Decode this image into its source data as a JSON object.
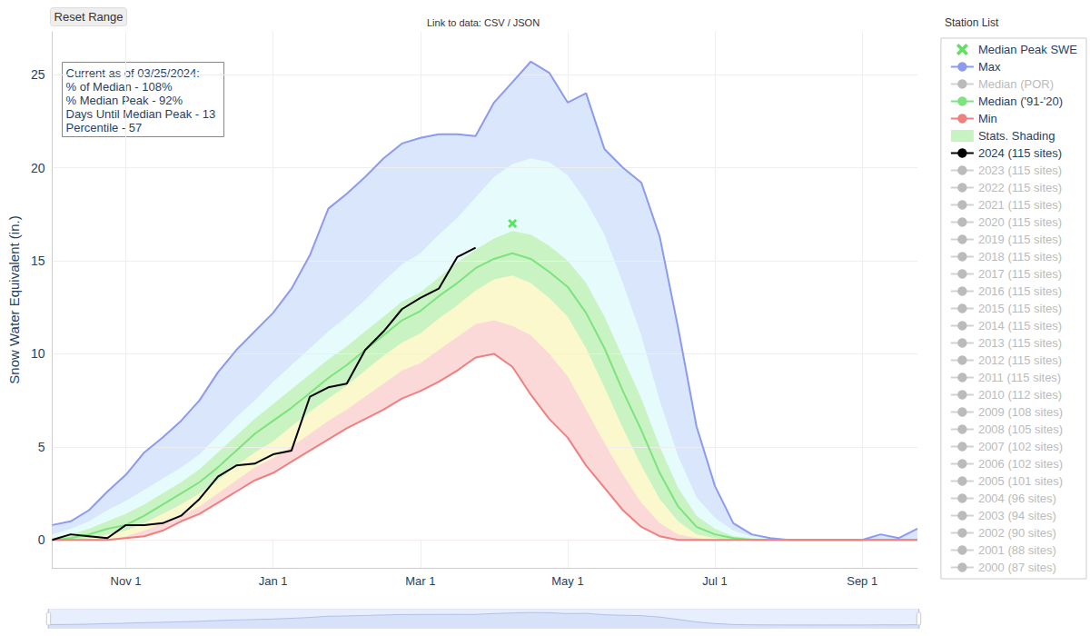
{
  "chart_data": {
    "type": "line",
    "y_label": "Snow Water Equivalent (in.)",
    "button": "Reset Range",
    "link_text": "Link to data: CSV / JSON",
    "legend_title": "Station List",
    "annotation": [
      "Current as of 03/25/2024:",
      "% of Median - 108%",
      "% Median Peak - 92%",
      "Days Until Median Peak - 13",
      "Percentile - 57"
    ],
    "categories": [
      null,
      null,
      null,
      null,
      "Nov 1",
      null,
      null,
      null,
      null,
      null,
      null,
      null,
      "Jan 1",
      null,
      null,
      null,
      null,
      null,
      null,
      null,
      "Mar 1",
      null,
      null,
      null,
      null,
      null,
      null,
      null,
      "May 1",
      null,
      null,
      null,
      null,
      null,
      null,
      null,
      "Jul 1",
      null,
      null,
      null,
      null,
      null,
      null,
      null,
      "Sep 1",
      null,
      null,
      null
    ],
    "ylim": [
      -1.5,
      27.3
    ],
    "yticks": [
      0,
      5,
      10,
      15,
      20,
      25
    ],
    "grid": true,
    "legend": "right",
    "series": [
      {
        "name": "Median Peak SWE",
        "type": "scatter",
        "marker": "x",
        "color": "#33dd33",
        "values": [
          null,
          null,
          null,
          null,
          null,
          null,
          null,
          null,
          null,
          null,
          null,
          null,
          null,
          null,
          null,
          null,
          null,
          null,
          null,
          null,
          null,
          null,
          null,
          null,
          null,
          17.0,
          null,
          null,
          null,
          null,
          null,
          null,
          null,
          null,
          null,
          null,
          null,
          null,
          null,
          null,
          null,
          null,
          null,
          null,
          null,
          null,
          null,
          null
        ]
      },
      {
        "name": "Max",
        "type": "line",
        "color": "#8c9af0",
        "values": [
          0.8,
          1.0,
          1.6,
          2.6,
          3.5,
          4.7,
          5.5,
          6.4,
          7.5,
          9.0,
          10.2,
          11.2,
          12.2,
          13.5,
          15.3,
          17.8,
          18.6,
          19.5,
          20.5,
          21.3,
          21.6,
          21.8,
          21.8,
          21.7,
          23.5,
          24.6,
          25.7,
          25.1,
          23.5,
          24.0,
          21.0,
          20.0,
          19.2,
          16.3,
          11.4,
          6.1,
          2.9,
          0.9,
          0.3,
          0.1,
          0.0,
          0.0,
          0.0,
          0.0,
          0.0,
          0.3,
          0.1,
          0.6
        ]
      },
      {
        "name": "Median (POR)",
        "type": "line",
        "color": "#a8e8a8",
        "line_style": "dashed"
      },
      {
        "name": "Median ('91-'20)",
        "type": "line",
        "color": "#7de37d",
        "values": [
          0.0,
          0.1,
          0.3,
          0.6,
          0.8,
          1.3,
          1.9,
          2.5,
          3.1,
          3.9,
          4.8,
          5.7,
          6.4,
          7.1,
          7.9,
          8.7,
          9.4,
          10.2,
          11.0,
          11.8,
          12.3,
          13.1,
          13.8,
          14.6,
          15.1,
          15.4,
          15.1,
          14.4,
          13.6,
          12.2,
          10.3,
          8.0,
          5.9,
          3.6,
          1.8,
          0.7,
          0.3,
          0.1,
          0.0,
          0.0,
          0.0,
          0.0,
          0.0,
          0.0,
          0.0,
          0.0,
          0.0,
          0.0
        ]
      },
      {
        "name": "Min",
        "type": "line",
        "color": "#f07f7f",
        "values": [
          0.0,
          0.0,
          0.0,
          0.0,
          0.1,
          0.2,
          0.5,
          1.0,
          1.4,
          2.0,
          2.6,
          3.2,
          3.6,
          4.2,
          4.8,
          5.4,
          6.0,
          6.5,
          7.0,
          7.6,
          8.0,
          8.5,
          9.1,
          9.8,
          10.0,
          9.3,
          7.8,
          6.5,
          5.5,
          4.0,
          2.8,
          1.6,
          0.7,
          0.2,
          0.0,
          0.0,
          0.0,
          0.0,
          0.0,
          0.0,
          0.0,
          0.0,
          0.0,
          0.0,
          0.0,
          0.0,
          0.0,
          0.0
        ]
      },
      {
        "name": "Stats. Shading",
        "type": "bands",
        "color": "#c6f3c1",
        "between": [
          "Max",
          "Min"
        ],
        "colors": [
          "#d9e6fb",
          "#e6fbfb",
          "#c9f3c2",
          "#fbf8cd",
          "#fbd9d9"
        ],
        "boundaries": [
          [
            0.3,
            0.6,
            1.0,
            1.6,
            2.1,
            2.7,
            3.3,
            3.9,
            4.6,
            5.6,
            6.6,
            7.5,
            8.5,
            9.4,
            10.3,
            11.2,
            12.0,
            12.9,
            13.9,
            14.8,
            15.4,
            16.4,
            17.3,
            18.4,
            19.5,
            20.2,
            20.5,
            20.3,
            19.6,
            18.2,
            16.4,
            13.8,
            11.0,
            7.5,
            4.5,
            2.3,
            1.2,
            0.5,
            0.2,
            0.1,
            0.0,
            0.0,
            0.0,
            0.0,
            0.0,
            0.0,
            0.0,
            0.0
          ],
          [
            0.1,
            0.3,
            0.6,
            1.0,
            1.4,
            1.9,
            2.5,
            3.1,
            3.8,
            4.7,
            5.6,
            6.5,
            7.3,
            8.1,
            8.9,
            9.7,
            10.4,
            11.2,
            12.0,
            12.8,
            13.3,
            14.1,
            14.9,
            15.6,
            16.2,
            16.6,
            16.4,
            15.8,
            15.0,
            13.8,
            12.0,
            9.8,
            7.6,
            5.0,
            2.8,
            1.3,
            0.6,
            0.2,
            0.1,
            0.0,
            0.0,
            0.0,
            0.0,
            0.0,
            0.0,
            0.0,
            0.0,
            0.0
          ],
          [
            0.0,
            0.0,
            0.1,
            0.3,
            0.5,
            0.9,
            1.4,
            1.9,
            2.5,
            3.2,
            4.0,
            4.7,
            5.3,
            6.1,
            6.9,
            7.6,
            8.3,
            9.1,
            9.9,
            10.6,
            11.1,
            11.9,
            12.6,
            13.4,
            14.0,
            14.2,
            13.8,
            13.0,
            12.0,
            10.3,
            8.2,
            6.0,
            4.0,
            2.2,
            1.0,
            0.3,
            0.1,
            0.0,
            0.0,
            0.0,
            0.0,
            0.0,
            0.0,
            0.0,
            0.0,
            0.0,
            0.0,
            0.0
          ],
          [
            0.0,
            0.0,
            0.0,
            0.0,
            0.2,
            0.5,
            0.9,
            1.3,
            1.8,
            2.5,
            3.2,
            3.9,
            4.4,
            5.0,
            5.7,
            6.4,
            7.0,
            7.7,
            8.4,
            9.1,
            9.5,
            10.2,
            10.9,
            11.6,
            11.8,
            11.5,
            11.0,
            10.0,
            8.8,
            7.0,
            5.2,
            3.5,
            2.0,
            0.9,
            0.3,
            0.1,
            0.0,
            0.0,
            0.0,
            0.0,
            0.0,
            0.0,
            0.0,
            0.0,
            0.0,
            0.0,
            0.0,
            0.0
          ]
        ]
      },
      {
        "name": "2024 (115 sites)",
        "type": "line",
        "color": "#000000",
        "values": [
          0.0,
          0.3,
          0.2,
          0.1,
          0.8,
          0.8,
          0.9,
          1.3,
          2.2,
          3.4,
          4.0,
          4.1,
          4.6,
          4.8,
          7.7,
          8.2,
          8.4,
          10.2,
          11.2,
          12.4,
          13.0,
          13.5,
          15.2,
          15.7,
          null,
          null,
          null,
          null,
          null,
          null,
          null,
          null,
          null,
          null,
          null,
          null,
          null,
          null,
          null,
          null,
          null,
          null,
          null,
          null,
          null,
          null,
          null,
          null
        ]
      },
      {
        "name": "2023 (115 sites)",
        "type": "line",
        "color": "#c9a8f0"
      },
      {
        "name": "2022 (115 sites)",
        "type": "line",
        "color": "#66d4b0"
      },
      {
        "name": "2021 (115 sites)",
        "type": "line",
        "color": "#f09080"
      },
      {
        "name": "2020 (115 sites)",
        "type": "line",
        "color": "#99aaf0"
      },
      {
        "name": "2019 (115 sites)",
        "type": "line",
        "color": "#f5d080"
      },
      {
        "name": "2018 (115 sites)",
        "type": "line",
        "color": "#f0a0f0"
      },
      {
        "name": "2017 (115 sites)",
        "type": "line",
        "color": "#c8f0a0"
      },
      {
        "name": "2016 (115 sites)",
        "type": "line",
        "color": "#f08080"
      },
      {
        "name": "2015 (115 sites)",
        "type": "line",
        "color": "#80d8f0"
      },
      {
        "name": "2014 (115 sites)",
        "type": "line",
        "color": "#f0c080"
      },
      {
        "name": "2013 (115 sites)",
        "type": "line",
        "color": "#c0a0f0"
      },
      {
        "name": "2012 (115 sites)",
        "type": "line",
        "color": "#60d0a0"
      },
      {
        "name": "2011 (115 sites)",
        "type": "line",
        "color": "#f08888"
      },
      {
        "name": "2010 (112 sites)",
        "type": "line",
        "color": "#8090f0"
      },
      {
        "name": "2009 (108 sites)",
        "type": "line",
        "color": "#f0d080"
      },
      {
        "name": "2008 (105 sites)",
        "type": "line",
        "color": "#f0a8f0"
      },
      {
        "name": "2007 (102 sites)",
        "type": "line",
        "color": "#c0f0a0"
      },
      {
        "name": "2006 (102 sites)",
        "type": "line",
        "color": "#f09090"
      },
      {
        "name": "2005 (101 sites)",
        "type": "line",
        "color": "#80d0f0"
      },
      {
        "name": "2004 (96 sites)",
        "type": "line",
        "color": "#f0c088"
      },
      {
        "name": "2003 (94 sites)",
        "type": "line",
        "color": "#c0a8f0"
      },
      {
        "name": "2002 (90 sites)",
        "type": "line",
        "color": "#60d0a8"
      },
      {
        "name": "2001 (88 sites)",
        "type": "line",
        "color": "#f09898"
      },
      {
        "name": "2000 (87 sites)",
        "type": "line",
        "color": "#8898f0"
      }
    ]
  }
}
